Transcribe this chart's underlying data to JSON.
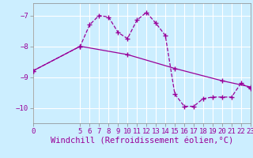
{
  "xlabel": "Windchill (Refroidissement éolien,°C)",
  "background_color": "#cceeff",
  "line_color": "#990099",
  "grid_color": "#ffffff",
  "series1_x": [
    0,
    5,
    6,
    7,
    8,
    9,
    10,
    11,
    12,
    13,
    14,
    15,
    16,
    17,
    18,
    19,
    20,
    21,
    22,
    23
  ],
  "series1_y": [
    -8.8,
    -8.0,
    -7.3,
    -7.0,
    -7.05,
    -7.55,
    -7.75,
    -7.15,
    -6.9,
    -7.25,
    -7.65,
    -9.55,
    -9.95,
    -9.95,
    -9.7,
    -9.65,
    -9.65,
    -9.65,
    -9.2,
    -9.38
  ],
  "series2_x": [
    0,
    5,
    10,
    15,
    20,
    23
  ],
  "series2_y": [
    -8.8,
    -8.0,
    -8.27,
    -8.72,
    -9.12,
    -9.32
  ],
  "xlim": [
    0,
    23
  ],
  "ylim": [
    -10.5,
    -6.6
  ],
  "yticks": [
    -10,
    -9,
    -8,
    -7
  ],
  "xticks": [
    0,
    5,
    6,
    7,
    8,
    9,
    10,
    11,
    12,
    13,
    14,
    15,
    16,
    17,
    18,
    19,
    20,
    21,
    22,
    23
  ],
  "tick_fontsize": 6.5,
  "xlabel_fontsize": 7.5
}
